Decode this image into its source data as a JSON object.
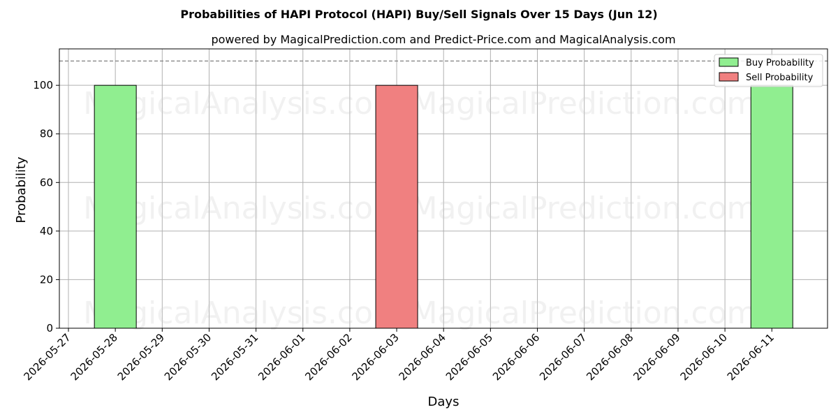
{
  "chart_data": {
    "type": "bar",
    "title": "Probabilities of HAPI Protocol (HAPI) Buy/Sell Signals Over 15 Days (Jun 12)",
    "subtitle": "powered by MagicalPrediction.com and Predict-Price.com and MagicalAnalysis.com",
    "xlabel": "Days",
    "ylabel": "Probability",
    "categories": [
      "2026-05-27",
      "2026-05-28",
      "2026-05-29",
      "2026-05-30",
      "2026-05-31",
      "2026-06-01",
      "2026-06-02",
      "2026-06-03",
      "2026-06-04",
      "2026-06-05",
      "2026-06-06",
      "2026-06-07",
      "2026-06-08",
      "2026-06-09",
      "2026-06-10",
      "2026-06-11"
    ],
    "yticks": [
      "0",
      "20",
      "40",
      "60",
      "80",
      "100"
    ],
    "ylim": [
      0,
      115
    ],
    "grid": true,
    "legend_position": "top-right",
    "reference_line": 110,
    "series": [
      {
        "name": "Buy Probability",
        "color": "#90ee90",
        "points": [
          {
            "x": "2026-05-28",
            "y": 100
          },
          {
            "x": "2026-06-11",
            "y": 100
          }
        ]
      },
      {
        "name": "Sell Probability",
        "color": "#f08080",
        "points": [
          {
            "x": "2026-06-03",
            "y": 100
          }
        ]
      }
    ],
    "watermarks": [
      "MagicalAnalysis.com",
      "MagicalPrediction.com"
    ]
  }
}
